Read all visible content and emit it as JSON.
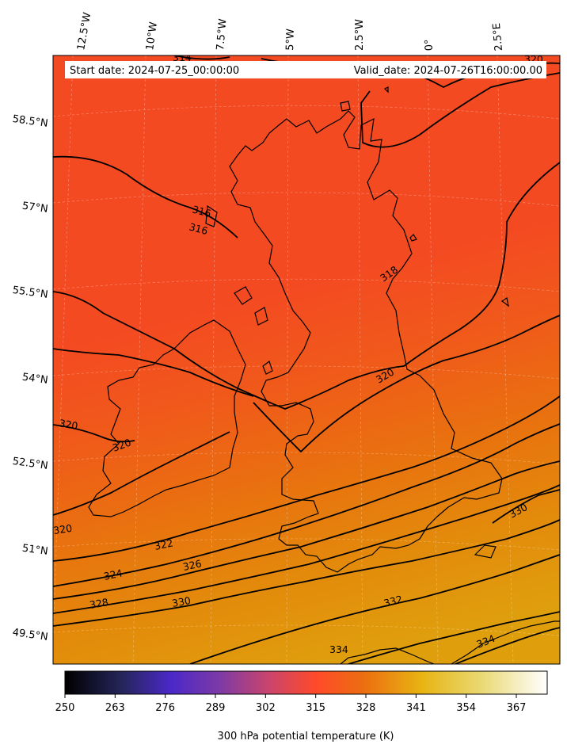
{
  "header": {
    "start_date": "Start date: 2024-07-25_00:00:00",
    "valid_date": "Valid_date: 2024-07-26T16:00:00.00"
  },
  "longitude_labels": [
    "12.5°W",
    "10°W",
    "7.5°W",
    "5°W",
    "2.5°W",
    "0°",
    "2.5°E"
  ],
  "latitude_labels": [
    "58.5°N",
    "57°N",
    "55.5°N",
    "54°N",
    "52.5°N",
    "51°N",
    "49.5°N"
  ],
  "contours": [
    {
      "level": 314,
      "label": "314"
    },
    {
      "level": 316,
      "label": "316"
    },
    {
      "level": 318,
      "label": "318"
    },
    {
      "level": 320,
      "label": "320"
    },
    {
      "level": 322,
      "label": "322"
    },
    {
      "level": 324,
      "label": "324"
    },
    {
      "level": 326,
      "label": "326"
    },
    {
      "level": 328,
      "label": "328"
    },
    {
      "level": 330,
      "label": "330"
    },
    {
      "level": 332,
      "label": "332"
    },
    {
      "level": 334,
      "label": "334"
    }
  ],
  "colorbar": {
    "label": "300 hPa potential temperature (K)",
    "ticks": [
      "250",
      "263",
      "276",
      "289",
      "302",
      "315",
      "328",
      "341",
      "354",
      "367"
    ],
    "min": 250,
    "max": 375,
    "colormap": "CMRmap"
  },
  "colors": {
    "cold_orange": "#f44a22",
    "mid_orange": "#e9700c",
    "warm_yellow": "#df9e0c"
  }
}
